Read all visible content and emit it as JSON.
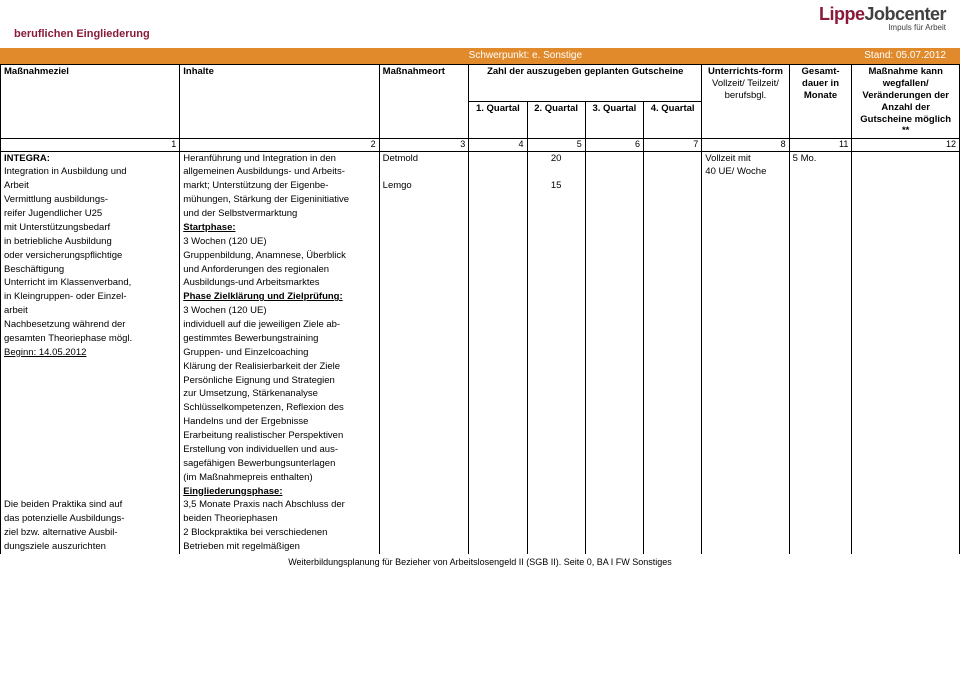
{
  "header": {
    "title": "beruflichen Eingliederung",
    "logo_lippe": "Lippe",
    "logo_jc": "Jobcenter",
    "logo_sub": "Impuls für Arbeit"
  },
  "orangebar": {
    "left": "",
    "center": "Schwerpunkt: e. Sonstige",
    "right": "Stand: 05.07.2012"
  },
  "thead": {
    "c1": "Maßnahmeziel",
    "c2": "Inhalte",
    "c3": "Maßnahmeort",
    "c_span": "Zahl der auszugeben geplanten Gutscheine",
    "q1": "1. Quartal",
    "q2": "2. Quartal",
    "q3": "3. Quartal",
    "q4": "4. Quartal",
    "c7a": "Unterrichts-form",
    "c7b": "Vollzeit/ Teilzeit/ berufsbgl.",
    "c8a": "Gesamt-dauer in Monate",
    "c12a": "Maßnahme kann wegfallen/ Veränderungen der Anzahl der Gutscheine möglich **"
  },
  "numrow": {
    "n1": "1",
    "n2": "2",
    "n3": "3",
    "n4": "4",
    "n5": "5",
    "n6": "6",
    "n7": "7",
    "n8": "8",
    "n11": "11",
    "n12": "12"
  },
  "rows": {
    "col1": [
      {
        "t": "INTEGRA:",
        "b": true
      },
      {
        "t": "Integration in Ausbildung und"
      },
      {
        "t": "Arbeit"
      },
      {
        "t": "Vermittlung ausbildungs-"
      },
      {
        "t": "reifer Jugendlicher U25"
      },
      {
        "t": "mit Unterstützungsbedarf"
      },
      {
        "t": "in betriebliche Ausbildung"
      },
      {
        "t": "oder versicherungspflichtige"
      },
      {
        "t": "Beschäftigung"
      },
      {
        "t": "Unterricht im Klassenverband,"
      },
      {
        "t": "in Kleingruppen- oder Einzel-"
      },
      {
        "t": "arbeit"
      },
      {
        "t": "Nachbesetzung während der"
      },
      {
        "t": "gesamten Theoriephase mögl."
      },
      {
        "t": "Beginn: 14.05.2012",
        "u": true
      },
      {
        "t": ""
      },
      {
        "t": ""
      },
      {
        "t": ""
      },
      {
        "t": ""
      },
      {
        "t": ""
      },
      {
        "t": ""
      },
      {
        "t": ""
      },
      {
        "t": ""
      },
      {
        "t": ""
      },
      {
        "t": ""
      },
      {
        "t": "Die beiden Praktika sind auf"
      },
      {
        "t": "das potenzielle Ausbildungs-"
      },
      {
        "t": "ziel bzw. alternative Ausbil-"
      },
      {
        "t": "dungsziele auszurichten"
      }
    ],
    "col2": [
      {
        "t": "Heranführung und Integration in den"
      },
      {
        "t": "allgemeinen Ausbildungs- und Arbeits-"
      },
      {
        "t": "markt; Unterstützung der Eigenbe-"
      },
      {
        "t": "mühungen, Stärkung der Eigeninitiative"
      },
      {
        "t": "und der Selbstvermarktung"
      },
      {
        "t": "Startphase:",
        "b": true,
        "u": true
      },
      {
        "t": "3 Wochen (120 UE)"
      },
      {
        "t": "Gruppenbildung, Anamnese, Überblick"
      },
      {
        "t": "und Anforderungen des regionalen"
      },
      {
        "t": "Ausbildungs-und Arbeitsmarktes"
      },
      {
        "t": "Phase Zielklärung und Zielprüfung:",
        "b": true,
        "u": true
      },
      {
        "t": "3 Wochen (120 UE)"
      },
      {
        "t": "individuell auf die jeweiligen Ziele ab-"
      },
      {
        "t": "gestimmtes Bewerbungstraining"
      },
      {
        "t": "Gruppen- und Einzelcoaching"
      },
      {
        "t": "Klärung der Realisierbarkeit der Ziele"
      },
      {
        "t": "Persönliche Eignung und Strategien"
      },
      {
        "t": "zur Umsetzung, Stärkenanalyse"
      },
      {
        "t": "Schlüsselkompetenzen, Reflexion des"
      },
      {
        "t": "Handelns und der Ergebnisse"
      },
      {
        "t": "Erarbeitung realistischer Perspektiven"
      },
      {
        "t": "Erstellung von individuellen und aus-"
      },
      {
        "t": "sagefähigen Bewerbungsunterlagen"
      },
      {
        "t": "(im Maßnahmepreis enthalten)"
      },
      {
        "t": "Eingliederungsphase:",
        "b": true,
        "u": true
      },
      {
        "t": "3,5 Monate Praxis nach Abschluss der"
      },
      {
        "t": "beiden Theoriephasen"
      },
      {
        "t": "2 Blockpraktika bei verschiedenen"
      },
      {
        "t": "Betrieben mit regelmäßigen"
      }
    ],
    "col3": [
      {
        "t": "Detmold"
      },
      {
        "t": ""
      },
      {
        "t": "Lemgo"
      }
    ],
    "colq2": [
      {
        "t": "20"
      },
      {
        "t": ""
      },
      {
        "t": "15"
      }
    ],
    "col7": [
      {
        "t": "Vollzeit mit"
      },
      {
        "t": "40 UE/ Woche"
      }
    ],
    "col8": [
      {
        "t": "5 Mo."
      }
    ]
  },
  "footer": "Weiterbildungsplanung für Bezieher von Arbeitslosengeld II (SGB II). Seite 0, BA I FW Sonstiges"
}
